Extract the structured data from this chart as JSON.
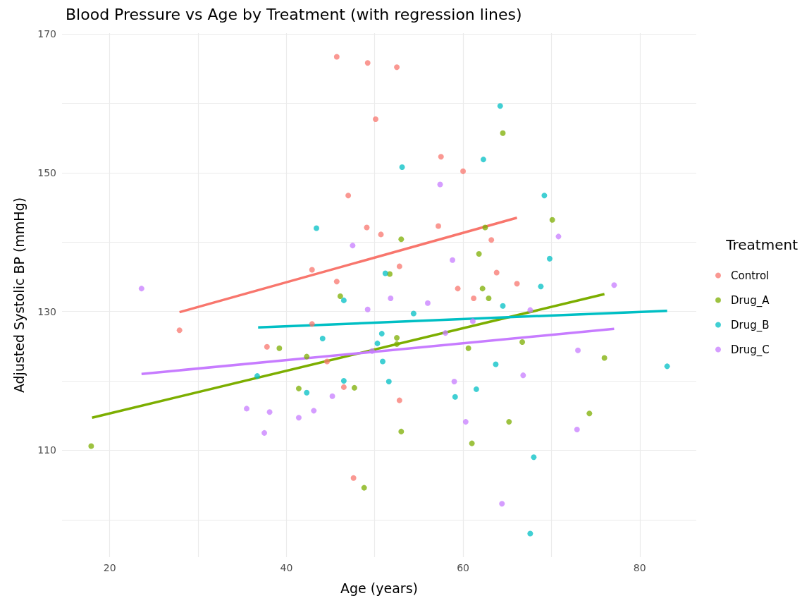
{
  "chart_data": {
    "type": "scatter",
    "title": "Blood Pressure vs Age by Treatment (with regression lines)",
    "xlabel": "Age (years)",
    "ylabel": "Adjusted Systolic BP (mmHg)",
    "legend_title": "Treatment",
    "xlim": [
      14.6,
      86.4
    ],
    "ylim": [
      94.6,
      170.1
    ],
    "xticks": [
      20,
      {
        "value": 30,
        "label": null
      },
      40,
      {
        "value": 50,
        "label": null
      },
      60,
      {
        "value": 70,
        "label": null
      },
      80
    ],
    "yticks": [
      {
        "value": 100,
        "label": null
      },
      110,
      {
        "value": 120,
        "label": null
      },
      130,
      {
        "value": 140,
        "label": null
      },
      150,
      {
        "value": 160,
        "label": null
      },
      170
    ],
    "grid": true,
    "legend": "right",
    "marker": "circle",
    "series": [
      {
        "name": "Control",
        "color": "#f8766d",
        "x": [
          45.7,
          49.2,
          52.5,
          50.1,
          57.5,
          60.0,
          47.0,
          49.1,
          57.2,
          50.7,
          63.2,
          52.8,
          42.9,
          45.7,
          63.8,
          66.1,
          59.4,
          61.2,
          42.9,
          27.9,
          37.8,
          44.6,
          46.5,
          52.8,
          47.6
        ],
        "values": [
          166.7,
          165.8,
          165.2,
          157.7,
          152.3,
          150.2,
          146.7,
          142.1,
          142.3,
          141.1,
          140.3,
          136.5,
          136.0,
          134.3,
          135.6,
          134.0,
          133.3,
          131.9,
          128.2,
          127.3,
          124.9,
          122.8,
          119.1,
          117.2,
          106.0
        ]
      },
      {
        "name": "Drug_A",
        "color": "#7cae00",
        "x": [
          17.9,
          48.8,
          61.0,
          53.0,
          65.2,
          74.3,
          76.0,
          66.7,
          60.6,
          52.5,
          52.5,
          39.2,
          42.3,
          41.4,
          47.7,
          46.1,
          51.7,
          53.0,
          61.8,
          62.5,
          62.2,
          62.9,
          70.1,
          64.5
        ],
        "values": [
          110.6,
          104.6,
          111.0,
          112.7,
          114.1,
          115.3,
          123.3,
          125.6,
          124.7,
          126.2,
          125.3,
          124.7,
          123.5,
          118.9,
          119.0,
          132.2,
          135.4,
          140.4,
          138.3,
          142.1,
          133.3,
          131.9,
          143.2,
          155.7
        ]
      },
      {
        "name": "Drug_B",
        "color": "#00bfc4",
        "x": [
          64.2,
          53.1,
          62.3,
          69.2,
          43.4,
          51.2,
          69.8,
          46.5,
          68.8,
          64.5,
          54.4,
          50.8,
          44.1,
          50.3,
          50.9,
          63.7,
          83.1,
          36.7,
          46.5,
          51.6,
          42.3,
          61.5,
          59.1,
          68.0,
          67.6
        ],
        "values": [
          159.6,
          150.8,
          151.9,
          146.7,
          142.0,
          135.5,
          137.6,
          131.6,
          133.6,
          130.8,
          129.7,
          126.8,
          126.1,
          125.4,
          122.8,
          122.4,
          122.1,
          120.7,
          120.0,
          119.9,
          118.3,
          118.8,
          117.7,
          109.0,
          98.0
        ]
      },
      {
        "name": "Drug_C",
        "color": "#c77cff",
        "x": [
          23.6,
          47.5,
          57.4,
          58.8,
          70.8,
          77.1,
          51.8,
          56.0,
          49.2,
          67.6,
          61.1,
          58.0,
          49.7,
          73.0,
          66.8,
          59.0,
          45.2,
          35.5,
          38.1,
          43.1,
          41.4,
          60.3,
          37.5,
          72.9,
          64.4
        ],
        "values": [
          133.3,
          139.5,
          148.3,
          137.4,
          140.8,
          133.8,
          131.9,
          131.2,
          130.3,
          130.2,
          128.6,
          126.9,
          124.3,
          124.4,
          120.8,
          119.9,
          117.8,
          116.0,
          115.5,
          115.7,
          114.7,
          114.1,
          112.5,
          113.0,
          102.3
        ]
      },
      {
        "type": "line",
        "marker": "none",
        "color": "#f8766d",
        "x": [
          27.9,
          66.1
        ],
        "values": [
          129.9,
          143.5
        ]
      },
      {
        "type": "line",
        "marker": "none",
        "color": "#7cae00",
        "x": [
          18.0,
          76.0
        ],
        "values": [
          114.7,
          132.5
        ]
      },
      {
        "type": "line",
        "marker": "none",
        "color": "#00bfc4",
        "x": [
          36.8,
          83.1
        ],
        "values": [
          127.7,
          130.1
        ]
      },
      {
        "type": "line",
        "marker": "none",
        "color": "#c77cff",
        "x": [
          23.6,
          77.1
        ],
        "values": [
          121.0,
          127.5
        ]
      }
    ]
  }
}
